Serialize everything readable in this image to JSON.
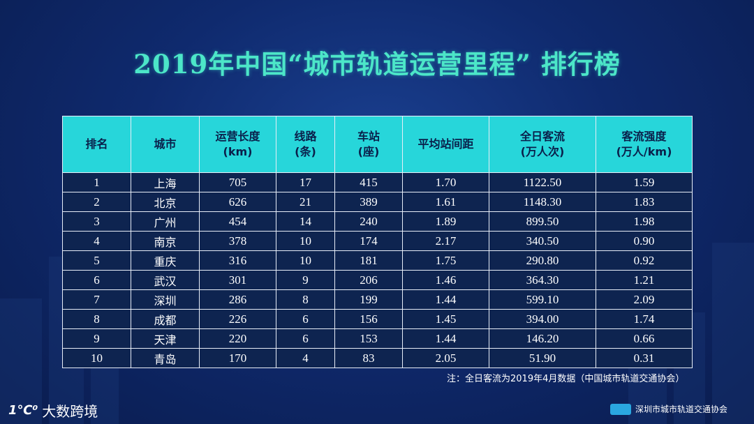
{
  "title": "2019年中国“城市轨道运营里程” 排行榜",
  "table": {
    "headers": [
      {
        "line1": "排名",
        "line2": ""
      },
      {
        "line1": "城市",
        "line2": ""
      },
      {
        "line1": "运营长度",
        "line2": "(km)"
      },
      {
        "line1": "线路",
        "line2": "(条)"
      },
      {
        "line1": "车站",
        "line2": "(座)"
      },
      {
        "line1": "平均站间距",
        "line2": ""
      },
      {
        "line1": "全日客流",
        "line2": "(万人次)"
      },
      {
        "line1": "客流强度",
        "line2": "(万人/km)"
      }
    ],
    "rows": [
      [
        "1",
        "上海",
        "705",
        "17",
        "415",
        "1.70",
        "1122.50",
        "1.59"
      ],
      [
        "2",
        "北京",
        "626",
        "21",
        "389",
        "1.61",
        "1148.30",
        "1.83"
      ],
      [
        "3",
        "广州",
        "454",
        "14",
        "240",
        "1.89",
        "899.50",
        "1.98"
      ],
      [
        "4",
        "南京",
        "378",
        "10",
        "174",
        "2.17",
        "340.50",
        "0.90"
      ],
      [
        "5",
        "重庆",
        "316",
        "10",
        "181",
        "1.75",
        "290.80",
        "0.92"
      ],
      [
        "6",
        "武汉",
        "301",
        "9",
        "206",
        "1.46",
        "364.30",
        "1.21"
      ],
      [
        "7",
        "深圳",
        "286",
        "8",
        "199",
        "1.44",
        "599.10",
        "2.09"
      ],
      [
        "8",
        "成都",
        "226",
        "6",
        "156",
        "1.45",
        "394.00",
        "1.74"
      ],
      [
        "9",
        "天津",
        "220",
        "6",
        "153",
        "1.44",
        "146.20",
        "0.66"
      ],
      [
        "10",
        "青岛",
        "170",
        "4",
        "83",
        "2.05",
        "51.90",
        "0.31"
      ]
    ]
  },
  "note": "注：全日客流为2019年4月数据（中国城市轨道交通协会）",
  "logo_left": {
    "mark": "1℃⁰",
    "text": "大数跨境"
  },
  "logo_right": {
    "text": "深圳市城市轨道交通协会"
  },
  "colors": {
    "title": "#4ce6c8",
    "header_bg": "#27d6da",
    "cell_bg": "#0e2450",
    "border": "#e8eef8"
  }
}
